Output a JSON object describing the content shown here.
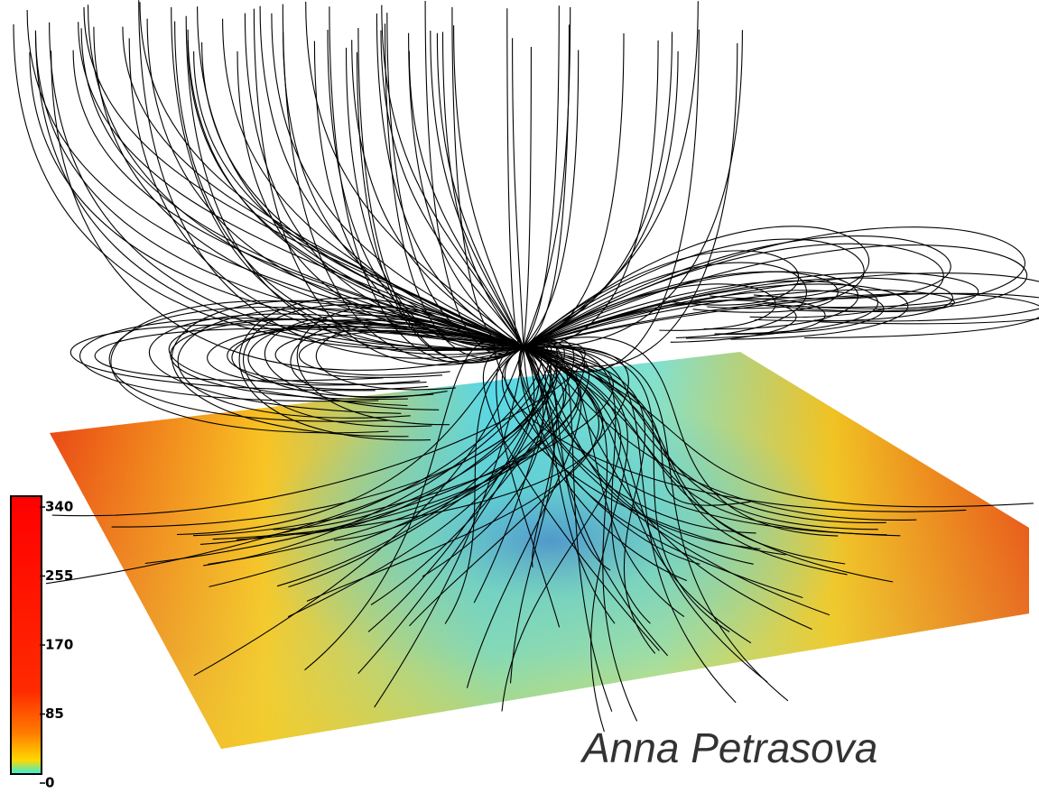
{
  "colorbar": {
    "ticks": [
      340,
      255,
      170,
      85,
      0
    ]
  },
  "credit": "Anna Petrasova"
}
